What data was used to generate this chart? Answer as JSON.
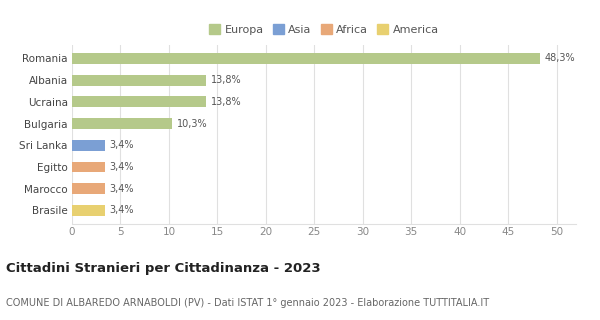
{
  "categories": [
    "Brasile",
    "Marocco",
    "Egitto",
    "Sri Lanka",
    "Bulgaria",
    "Ucraina",
    "Albania",
    "Romania"
  ],
  "values": [
    3.4,
    3.4,
    3.4,
    3.4,
    10.3,
    13.8,
    13.8,
    48.3
  ],
  "labels": [
    "3,4%",
    "3,4%",
    "3,4%",
    "3,4%",
    "10,3%",
    "13,8%",
    "13,8%",
    "48,3%"
  ],
  "colors": [
    "#e8d070",
    "#e8a878",
    "#e8a878",
    "#7b9fd4",
    "#b5c98a",
    "#b5c98a",
    "#b5c98a",
    "#b5c98a"
  ],
  "legend": [
    {
      "label": "Europa",
      "color": "#b5c98a"
    },
    {
      "label": "Asia",
      "color": "#7b9fd4"
    },
    {
      "label": "Africa",
      "color": "#e8a878"
    },
    {
      "label": "America",
      "color": "#e8d070"
    }
  ],
  "xlim": [
    0,
    52
  ],
  "xticks": [
    0,
    5,
    10,
    15,
    20,
    25,
    30,
    35,
    40,
    45,
    50
  ],
  "title": "Cittadini Stranieri per Cittadinanza - 2023",
  "subtitle": "COMUNE DI ALBAREDO ARNABOLDI (PV) - Dati ISTAT 1° gennaio 2023 - Elaborazione TUTTITALIA.IT",
  "bg_color": "#ffffff",
  "grid_color": "#e0e0e0",
  "bar_height": 0.5,
  "label_fontsize": 7.0,
  "title_fontsize": 9.5,
  "subtitle_fontsize": 7.0,
  "ytick_fontsize": 7.5,
  "xtick_fontsize": 7.5,
  "legend_fontsize": 8.0
}
